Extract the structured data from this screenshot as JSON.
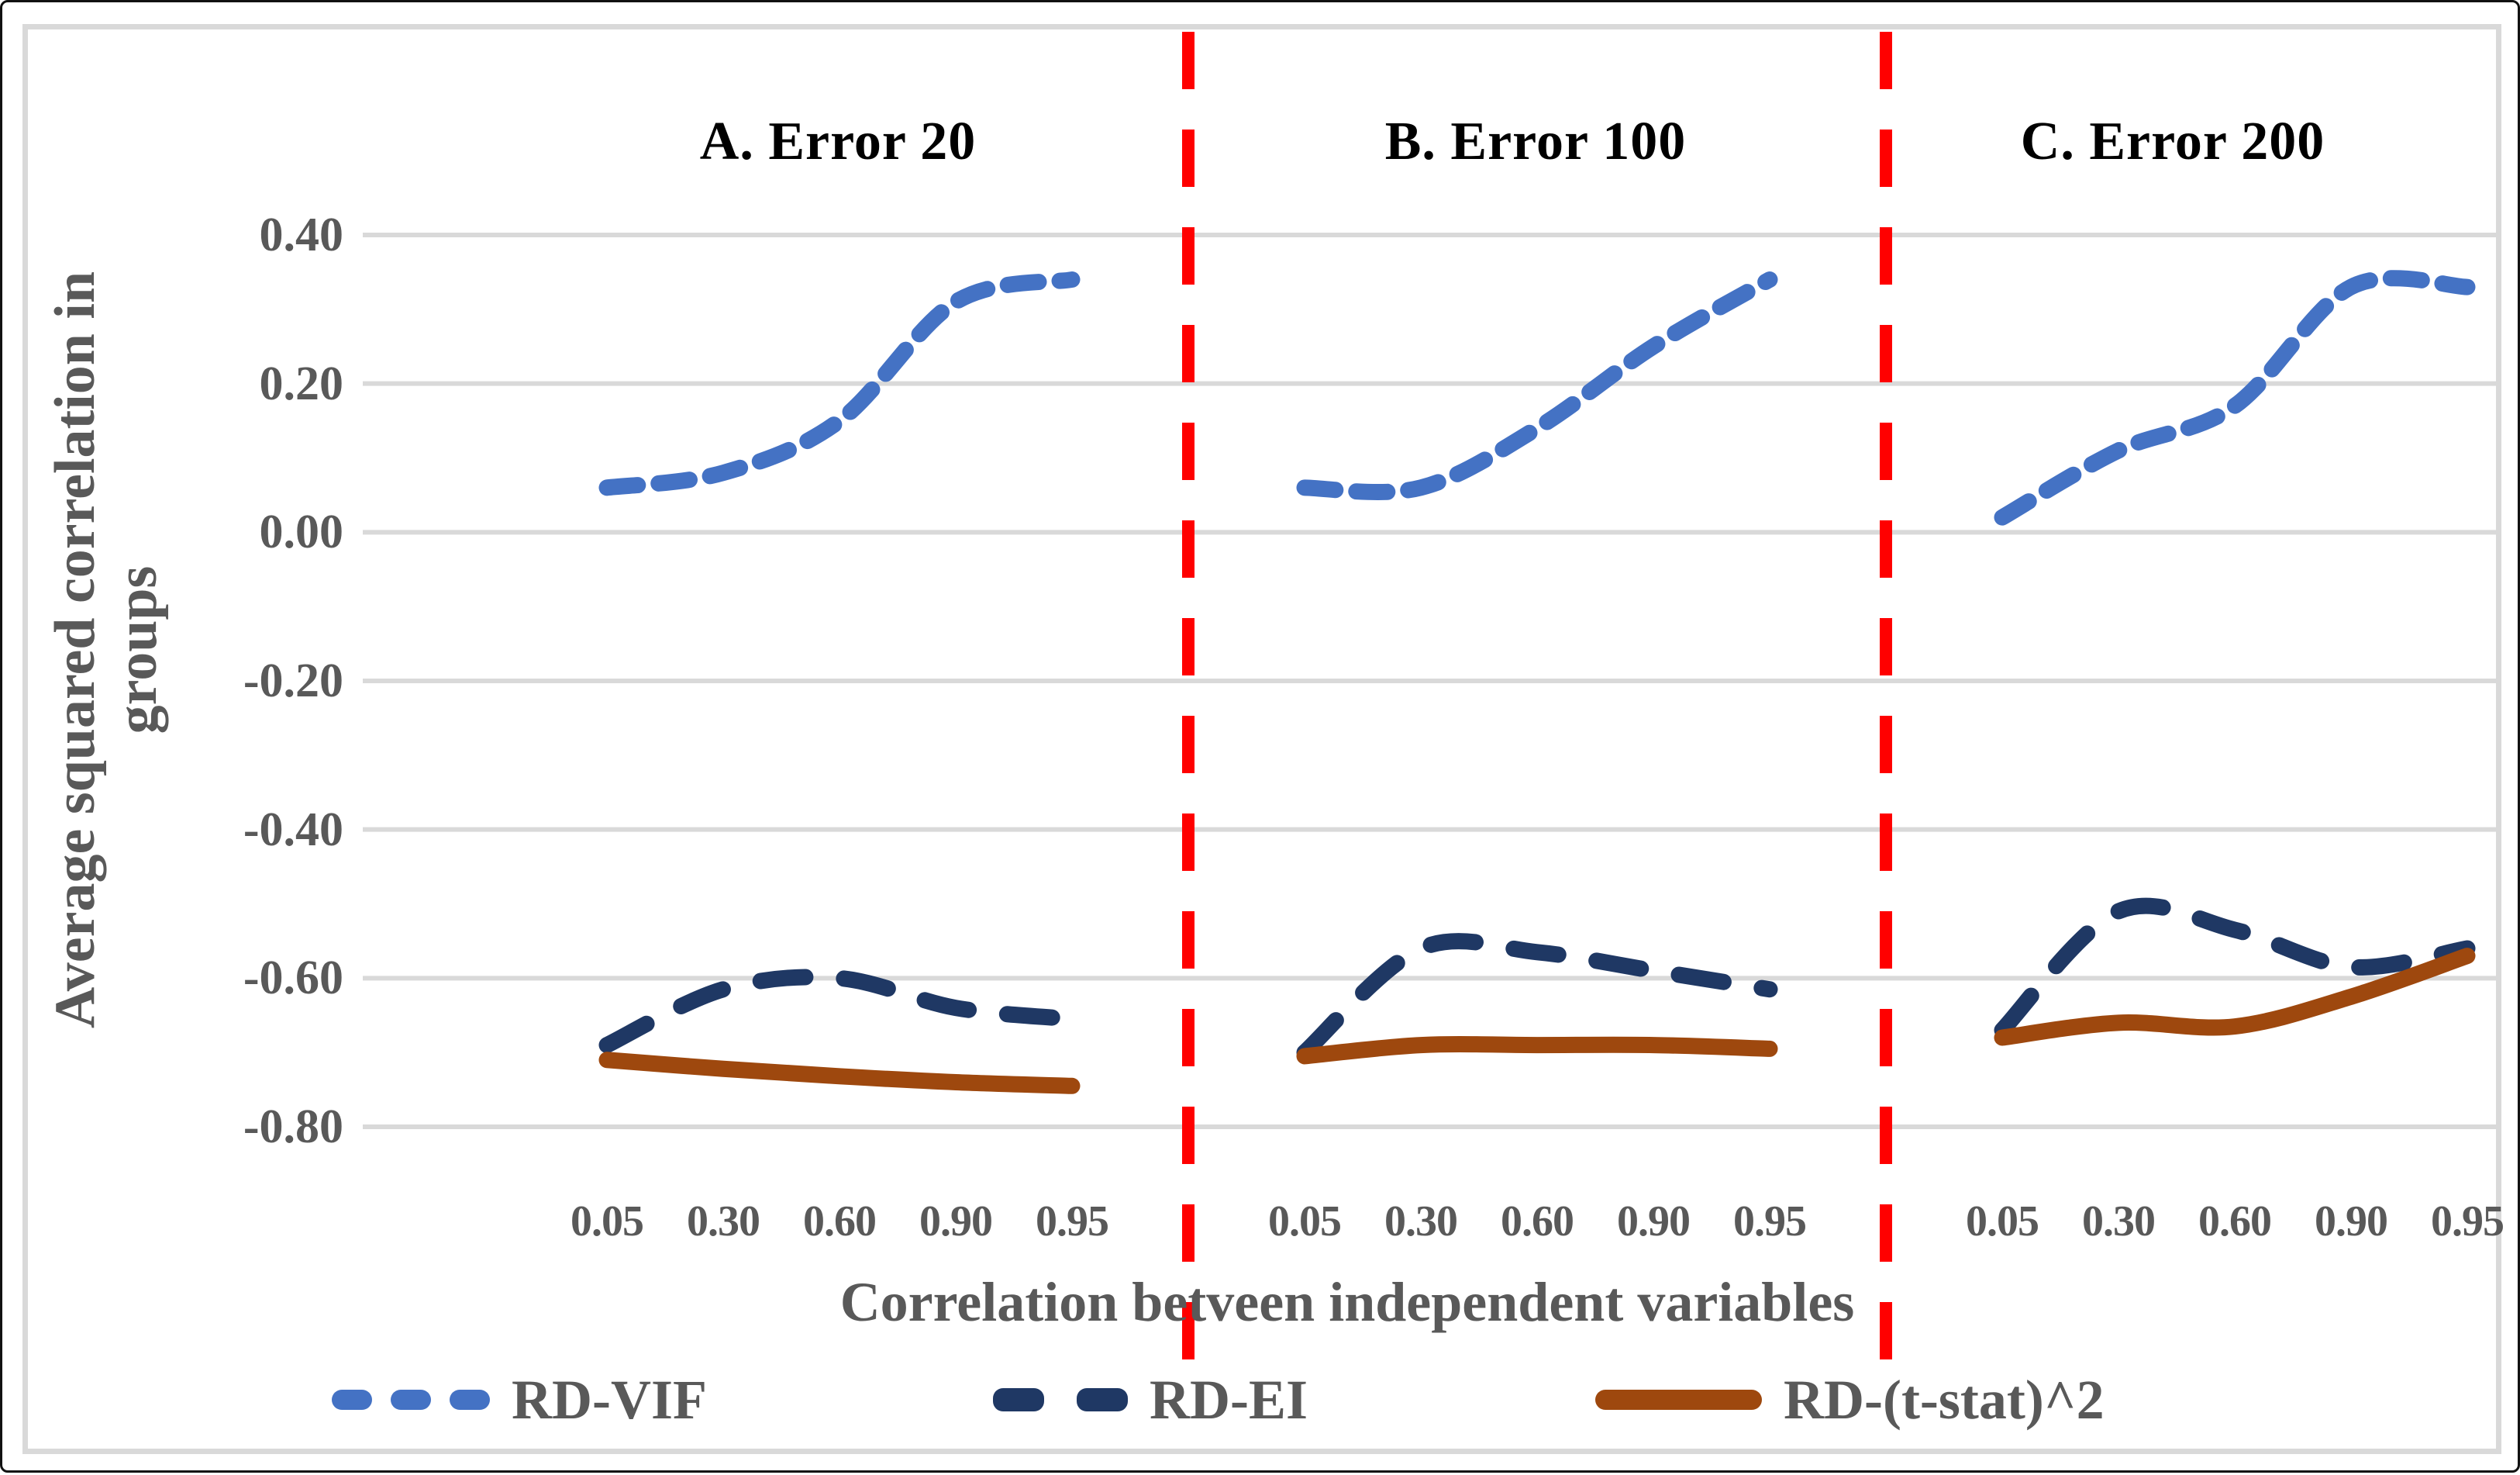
{
  "chart_data": {
    "type": "line",
    "title": "",
    "ylabel": "Average squared correlation in groups",
    "ylabel_line1": "Average squared correlation in",
    "ylabel_line2": "groups",
    "xlabel": "Correlation betveen independent variables",
    "y_tick_labels": [
      "0.40",
      "0.20",
      "0.00",
      "-0.20",
      "-0.40",
      "-0.60",
      "-0.80"
    ],
    "ylim": [
      -0.8,
      0.4
    ],
    "x_categories": [
      0.05,
      0.3,
      0.6,
      0.9,
      0.95
    ],
    "x_tick_labels": [
      "0.05",
      "0.30",
      "0.60",
      "0.90",
      "0.95"
    ],
    "grid": "horizontal",
    "gridline_color": "#D9D9D9",
    "panel_separator_color": "#FF0000",
    "axis_text_color": "#595959",
    "panel_title_color": "#000000",
    "legend_position": "bottom",
    "legend": [
      {
        "label": "RD-VIF",
        "color": "#4472C4",
        "style": "dashed"
      },
      {
        "label": "RD-EI",
        "color": "#1F3864",
        "style": "dashed-long"
      },
      {
        "label": "RD-(t-stat)^2",
        "color": "#9E480E",
        "style": "solid"
      }
    ],
    "panels": [
      {
        "label": "A. Error 20",
        "series": [
          {
            "name": "RD-VIF",
            "values": [
              0.06,
              0.08,
              0.15,
              0.31,
              0.34
            ]
          },
          {
            "name": "RD-EI",
            "values": [
              -0.69,
              -0.615,
              -0.6,
              -0.64,
              -0.655
            ]
          },
          {
            "name": "RD-(t-stat)^2",
            "values": [
              -0.71,
              -0.722,
              -0.732,
              -0.74,
              -0.745
            ]
          }
        ]
      },
      {
        "label": "B. Error 100",
        "series": [
          {
            "name": "RD-VIF",
            "values": [
              0.06,
              0.06,
              0.14,
              0.25,
              0.34
            ]
          },
          {
            "name": "RD-EI",
            "values": [
              -0.7,
              -0.56,
              -0.565,
              -0.59,
              -0.615
            ]
          },
          {
            "name": "RD-(t-stat)^2",
            "values": [
              -0.705,
              -0.69,
              -0.69,
              -0.69,
              -0.695
            ]
          }
        ]
      },
      {
        "label": "C. Error 200",
        "series": [
          {
            "name": "RD-VIF",
            "values": [
              0.02,
              0.11,
              0.17,
              0.33,
              0.33
            ]
          },
          {
            "name": "RD-EI",
            "values": [
              -0.67,
              -0.51,
              -0.535,
              -0.585,
              -0.56
            ]
          },
          {
            "name": "RD-(t-stat)^2",
            "values": [
              -0.68,
              -0.66,
              -0.665,
              -0.625,
              -0.57
            ]
          }
        ]
      }
    ]
  }
}
